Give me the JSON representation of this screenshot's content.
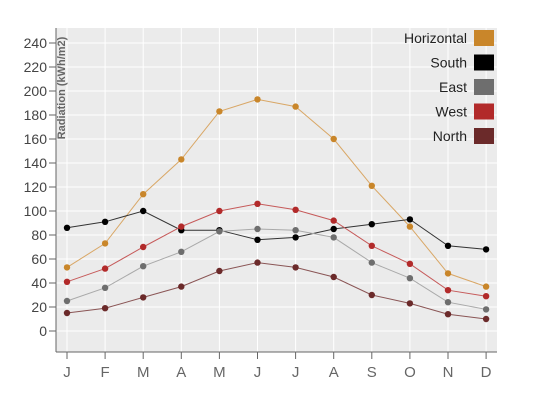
{
  "chart_data": {
    "type": "line",
    "ylabel": "Radiation (kWh/m2)",
    "categories": [
      "J",
      "F",
      "M",
      "A",
      "M",
      "J",
      "J",
      "A",
      "S",
      "O",
      "N",
      "D"
    ],
    "y_ticks": [
      0,
      20,
      40,
      60,
      80,
      100,
      120,
      140,
      160,
      180,
      200,
      220,
      240
    ],
    "ylim": [
      -12,
      250
    ],
    "grid": true,
    "legend_position": "top-right",
    "series": [
      {
        "name": "Horizontal",
        "color": "#c9862a",
        "line_color": "#d9a766",
        "values": [
          53,
          73,
          114,
          143,
          183,
          193,
          187,
          160,
          121,
          87,
          48,
          37
        ]
      },
      {
        "name": "South",
        "color": "#000000",
        "line_color": "#333333",
        "values": [
          86,
          91,
          100,
          84,
          84,
          76,
          78,
          85,
          89,
          93,
          71,
          68
        ]
      },
      {
        "name": "East",
        "color": "#6e6e6e",
        "line_color": "#a9a9a9",
        "values": [
          25,
          36,
          54,
          66,
          83,
          85,
          84,
          78,
          57,
          44,
          24,
          18
        ]
      },
      {
        "name": "West",
        "color": "#b22a2a",
        "line_color": "#c65a5a",
        "values": [
          41,
          52,
          70,
          87,
          100,
          106,
          101,
          92,
          71,
          56,
          34,
          29
        ]
      },
      {
        "name": "North",
        "color": "#6b2a2a",
        "line_color": "#8a5555",
        "values": [
          15,
          19,
          28,
          37,
          50,
          57,
          53,
          45,
          30,
          23,
          14,
          10
        ]
      }
    ]
  }
}
